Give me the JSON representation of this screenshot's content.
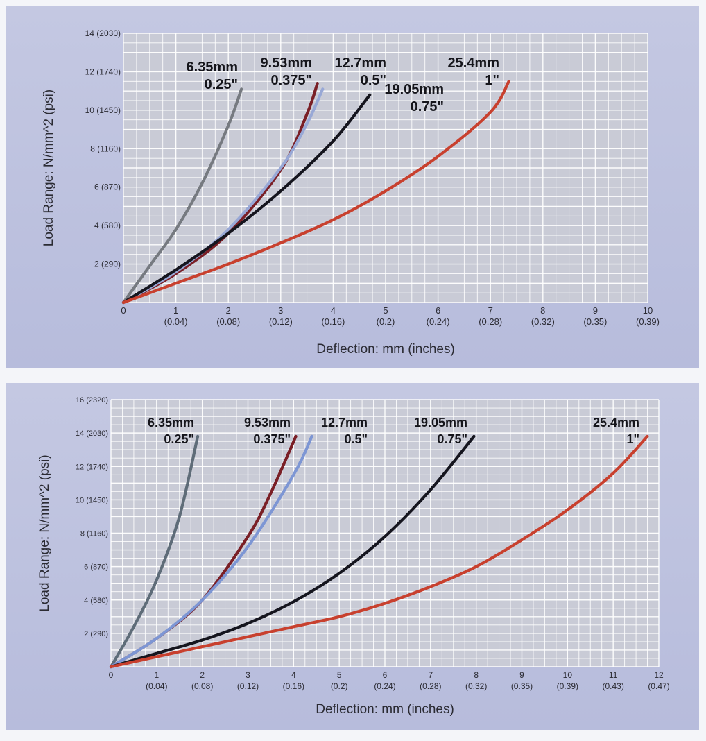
{
  "chart_data": [
    {
      "type": "line",
      "xlabel": "Deflection: mm (inches)",
      "ylabel": "Load Range:  N/mm^2  (psi)",
      "xlim": [
        0,
        10
      ],
      "ylim": [
        0,
        14
      ],
      "x_ticks": [
        {
          "value": 0,
          "mm": "0",
          "in": ""
        },
        {
          "value": 1,
          "mm": "1",
          "in": "(0.04)"
        },
        {
          "value": 2,
          "mm": "2",
          "in": "(0.08)"
        },
        {
          "value": 3,
          "mm": "3",
          "in": "(0.12)"
        },
        {
          "value": 4,
          "mm": "4",
          "in": "(0.16)"
        },
        {
          "value": 5,
          "mm": "5",
          "in": "(0.2)"
        },
        {
          "value": 6,
          "mm": "6",
          "in": "(0.24)"
        },
        {
          "value": 7,
          "mm": "7",
          "in": "(0.28)"
        },
        {
          "value": 8,
          "mm": "8",
          "in": "(0.32)"
        },
        {
          "value": 9,
          "mm": "9",
          "in": "(0.35)"
        },
        {
          "value": 10,
          "mm": "10",
          "in": "(0.39)"
        }
      ],
      "y_ticks": [
        {
          "value": 2,
          "label": "2 (290)"
        },
        {
          "value": 4,
          "label": "4 (580)"
        },
        {
          "value": 6,
          "label": "6 (870)"
        },
        {
          "value": 8,
          "label": "8 (1160)"
        },
        {
          "value": 10,
          "label": "10 (1450)"
        },
        {
          "value": 12,
          "label": "12 (1740)"
        },
        {
          "value": 14,
          "label": "14 (2030)"
        }
      ],
      "grid": true,
      "series": [
        {
          "name": "6.35mm 0.25\"",
          "line1": "6.35mm",
          "line2": "0.25\"",
          "color": "#767a80",
          "x": [
            0,
            0.5,
            1,
            1.5,
            2,
            2.25
          ],
          "y": [
            0,
            1.9,
            3.8,
            6.2,
            9.2,
            11.1
          ]
        },
        {
          "name": "9.53mm 0.375\"",
          "line1": "9.53mm",
          "line2": "0.375\"",
          "color": "#7a1f26",
          "x": [
            0,
            1,
            2,
            3,
            3.5,
            3.7
          ],
          "y": [
            0,
            1.5,
            3.6,
            6.9,
            9.8,
            11.4
          ]
        },
        {
          "name": "12.7mm 0.5\"",
          "line1": "12.7mm",
          "line2": "0.5\"",
          "color": "#98a8d6",
          "x": [
            0,
            1,
            2,
            3,
            3.5,
            3.8
          ],
          "y": [
            0,
            1.6,
            3.8,
            7.0,
            9.3,
            11.1
          ]
        },
        {
          "name": "19.05mm 0.75\"",
          "line1": "19.05mm",
          "line2": "0.75\"",
          "color": "#15151e",
          "x": [
            0,
            1,
            2,
            3,
            4,
            4.7
          ],
          "y": [
            0,
            1.7,
            3.6,
            5.8,
            8.4,
            10.8
          ]
        },
        {
          "name": "25.4mm 1\"",
          "line1": "25.4mm",
          "line2": "1\"",
          "color": "#c8402e",
          "x": [
            0,
            1,
            2,
            3,
            4,
            5,
            6,
            7,
            7.35
          ],
          "y": [
            0,
            1.0,
            2.0,
            3.1,
            4.3,
            5.8,
            7.6,
            9.9,
            11.5
          ]
        }
      ]
    },
    {
      "type": "line",
      "xlabel": "Deflection: mm (inches)",
      "ylabel": "Load Range:  N/mm^2  (psi)",
      "xlim": [
        0,
        12
      ],
      "ylim": [
        0,
        16
      ],
      "x_ticks": [
        {
          "value": 0,
          "mm": "0",
          "in": ""
        },
        {
          "value": 1,
          "mm": "1",
          "in": "(0.04)"
        },
        {
          "value": 2,
          "mm": "2",
          "in": "(0.08)"
        },
        {
          "value": 3,
          "mm": "3",
          "in": "(0.12)"
        },
        {
          "value": 4,
          "mm": "4",
          "in": "(0.16)"
        },
        {
          "value": 5,
          "mm": "5",
          "in": "(0.2)"
        },
        {
          "value": 6,
          "mm": "6",
          "in": "(0.24)"
        },
        {
          "value": 7,
          "mm": "7",
          "in": "(0.28)"
        },
        {
          "value": 8,
          "mm": "8",
          "in": "(0.32)"
        },
        {
          "value": 9,
          "mm": "9",
          "in": "(0.35)"
        },
        {
          "value": 10,
          "mm": "10",
          "in": "(0.39)"
        },
        {
          "value": 11,
          "mm": "11",
          "in": "(0.43)"
        },
        {
          "value": 12,
          "mm": "12",
          "in": "(0.47)"
        }
      ],
      "y_ticks": [
        {
          "value": 2,
          "label": "2 (290)"
        },
        {
          "value": 4,
          "label": "4 (580)"
        },
        {
          "value": 6,
          "label": "6 (870)"
        },
        {
          "value": 8,
          "label": "8 (1160)"
        },
        {
          "value": 10,
          "label": "10 (1450)"
        },
        {
          "value": 12,
          "label": "12 (1740)"
        },
        {
          "value": 14,
          "label": "14 (2030)"
        },
        {
          "value": 16,
          "label": "16 (2320)"
        }
      ],
      "grid": true,
      "series": [
        {
          "name": "6.35mm 0.25\"",
          "line1": "6.35mm",
          "line2": "0.25\"",
          "color": "#5e6c78",
          "x": [
            0,
            0.5,
            1,
            1.5,
            1.9
          ],
          "y": [
            0,
            2.4,
            5.2,
            9.0,
            13.8
          ]
        },
        {
          "name": "9.53mm 0.375\"",
          "line1": "9.53mm",
          "line2": "0.375\"",
          "color": "#7a1f26",
          "x": [
            0,
            1,
            2,
            3,
            3.5,
            4.05
          ],
          "y": [
            0,
            1.7,
            4.0,
            7.8,
            10.4,
            13.8
          ]
        },
        {
          "name": "12.7mm 0.5\"",
          "line1": "12.7mm",
          "line2": "0.5\"",
          "color": "#7d96d4",
          "x": [
            0,
            1,
            2,
            3,
            4,
            4.4
          ],
          "y": [
            0,
            1.7,
            4.0,
            7.2,
            11.5,
            13.8
          ]
        },
        {
          "name": "19.05mm 0.75\"",
          "line1": "19.05mm",
          "line2": "0.75\"",
          "color": "#15151e",
          "x": [
            0,
            1,
            2,
            3,
            4,
            5,
            6,
            7,
            7.95
          ],
          "y": [
            0,
            0.8,
            1.6,
            2.6,
            3.9,
            5.6,
            7.8,
            10.6,
            13.8
          ]
        },
        {
          "name": "25.4mm 1\"",
          "line1": "25.4mm",
          "line2": "1\"",
          "color": "#c8402e",
          "x": [
            0,
            1,
            2,
            3,
            4,
            5,
            6,
            7,
            8,
            9,
            10,
            11,
            11.75
          ],
          "y": [
            0,
            0.6,
            1.2,
            1.8,
            2.4,
            3.0,
            3.8,
            4.8,
            6.0,
            7.6,
            9.4,
            11.6,
            13.8
          ]
        }
      ]
    }
  ]
}
